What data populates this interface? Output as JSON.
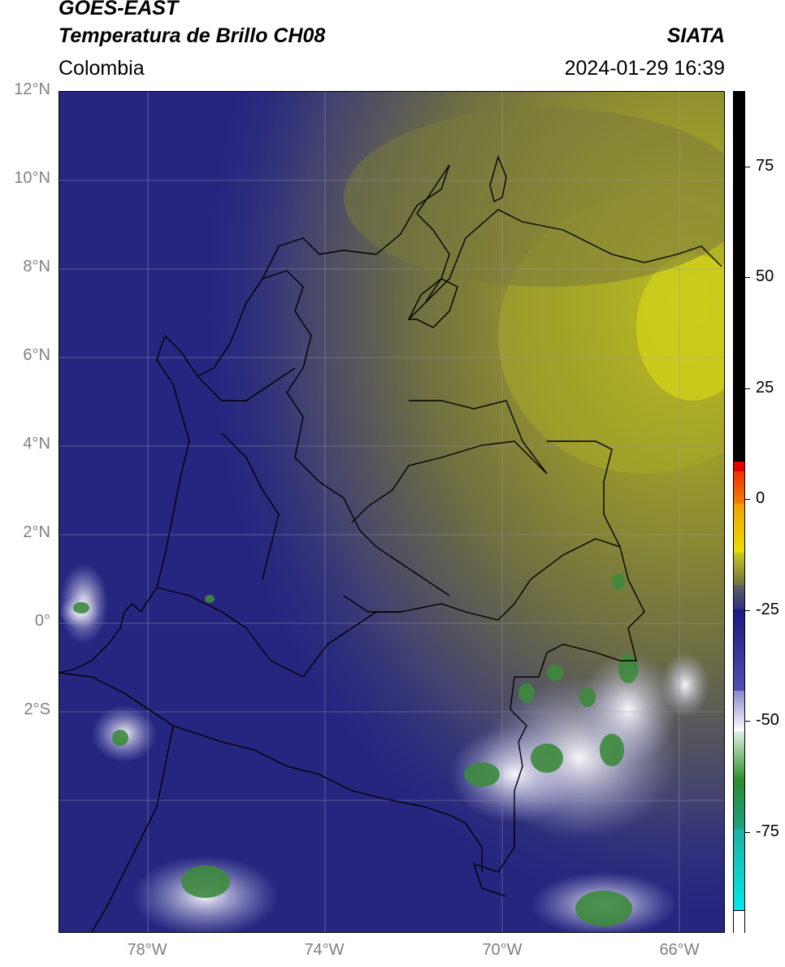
{
  "header": {
    "title_line1": "GOES-EAST",
    "title_line2": "Temperatura de Brillo CH08",
    "region": "Colombia",
    "organization": "SIATA",
    "timestamp": "2024-01-29 16:39"
  },
  "map": {
    "lat_labels": [
      "12°N",
      "10°N",
      "8°N",
      "6°N",
      "4°N",
      "2°N",
      "0°",
      "2°S"
    ],
    "lon_labels": [
      "78°W",
      "74°W",
      "70°W",
      "66°W"
    ],
    "extent": {
      "lon_min": -80,
      "lon_max": -65,
      "lat_min": -5,
      "lat_max": 14
    },
    "colors": {
      "ocean_cold": "#1f1f7a",
      "mid_gray": "#555570",
      "dry_olive": "#8c8c2a",
      "dry_yellow": "#c8c81e",
      "cloud_white": "#e6e6f0",
      "cloud_green": "#3c8c3c",
      "border": "#000000",
      "grid": "#9a9aaa"
    }
  },
  "colorbar": {
    "tick_labels": [
      "75",
      "50",
      "25",
      "0",
      "-25",
      "-50",
      "-75"
    ],
    "ticks": [
      75,
      50,
      25,
      0,
      -25,
      -50,
      -75
    ],
    "range": [
      -95,
      95
    ]
  }
}
